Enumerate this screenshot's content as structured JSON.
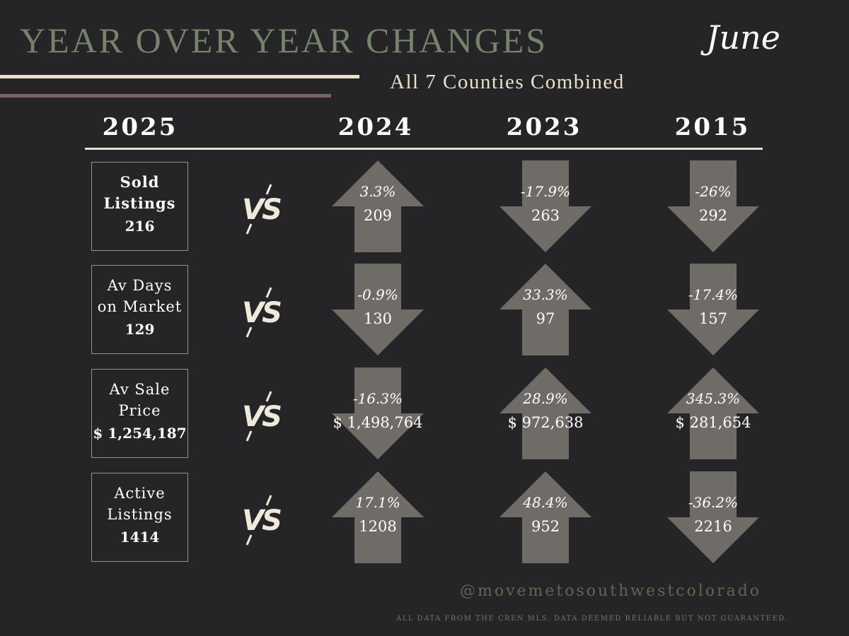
{
  "header": {
    "title": "YEAR OVER YEAR CHANGES",
    "month": "June",
    "subtitle": "All 7 Counties Combined"
  },
  "years": [
    "2025",
    "2024",
    "2023",
    "2015"
  ],
  "vs_label": "VS",
  "colors": {
    "arrow": "#6f6b66",
    "box_border": "#8e9a7f",
    "title": "#76826a"
  },
  "metrics": [
    {
      "label": "Sold\nListings",
      "value": "216",
      "comparisons": [
        {
          "direction": "up",
          "pct": "3.3%",
          "value": "209"
        },
        {
          "direction": "down",
          "pct": "-17.9%",
          "value": "263"
        },
        {
          "direction": "down",
          "pct": "-26%",
          "value": "292"
        }
      ]
    },
    {
      "label": "Av Days\non Market",
      "value": "129",
      "comparisons": [
        {
          "direction": "down",
          "pct": "-0.9%",
          "value": "130"
        },
        {
          "direction": "up",
          "pct": "33.3%",
          "value": "97"
        },
        {
          "direction": "down",
          "pct": "-17.4%",
          "value": "157"
        }
      ]
    },
    {
      "label": "Av Sale\nPrice",
      "value": "$ 1,254,187",
      "comparisons": [
        {
          "direction": "down",
          "pct": "-16.3%",
          "value": "$ 1,498,764"
        },
        {
          "direction": "up",
          "pct": "28.9%",
          "value": "$ 972,638"
        },
        {
          "direction": "up",
          "pct": "345.3%",
          "value": "$ 281,654"
        }
      ]
    },
    {
      "label": "Active\nListings",
      "value": "1414",
      "comparisons": [
        {
          "direction": "up",
          "pct": "17.1%",
          "value": "1208"
        },
        {
          "direction": "up",
          "pct": "48.4%",
          "value": "952"
        },
        {
          "direction": "down",
          "pct": "-36.2%",
          "value": "2216"
        }
      ]
    }
  ],
  "footer": {
    "handle": "@movemetosouthwestcolorado",
    "disclaimer": "ALL DATA FROM THE CREN MLS. DATA DEEMED RELIABLE BUT NOT GUARANTEED."
  }
}
